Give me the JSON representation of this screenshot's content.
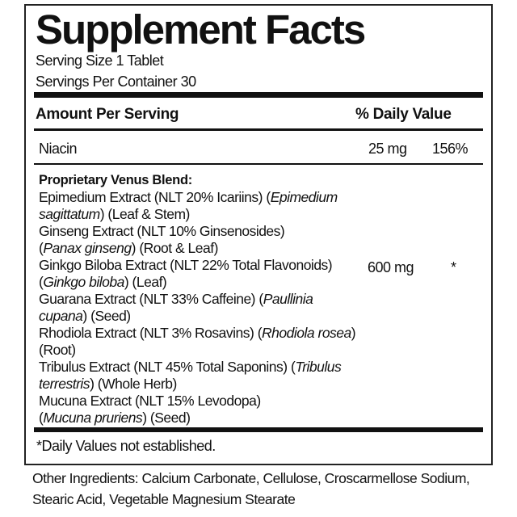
{
  "title": "Supplement Facts",
  "serving_size": "Serving Size 1 Tablet",
  "servings_per_container": "Servings Per Container 30",
  "header": {
    "amount": "Amount Per Serving",
    "daily_value": "% Daily Value"
  },
  "niacin": {
    "name": "Niacin",
    "amount": "25 mg",
    "dv": "156%"
  },
  "blend": {
    "name": "Proprietary Venus Blend:",
    "amount": "600 mg",
    "dv": "*",
    "lines": [
      [
        {
          "t": "Epimedium Extract (NLT 20% Icariins) ("
        },
        {
          "t": "Epimedium",
          "i": true
        }
      ],
      [
        {
          "t": "sagittatum",
          "i": true
        },
        {
          "t": ") (Leaf & Stem)"
        }
      ],
      [
        {
          "t": "Ginseng Extract (NLT 10% Ginsenosides)"
        }
      ],
      [
        {
          "t": " ("
        },
        {
          "t": "Panax ginseng",
          "i": true
        },
        {
          "t": ") (Root & Leaf)"
        }
      ],
      [
        {
          "t": "Ginkgo Biloba Extract (NLT 22% Total Flavonoids)"
        }
      ],
      [
        {
          "t": " ("
        },
        {
          "t": "Ginkgo biloba",
          "i": true
        },
        {
          "t": ") (Leaf)"
        }
      ],
      [
        {
          "t": "Guarana Extract (NLT 33% Caffeine) ("
        },
        {
          "t": "Paullinia",
          "i": true
        }
      ],
      [
        {
          "t": "cupana",
          "i": true
        },
        {
          "t": ") (Seed)"
        }
      ],
      [
        {
          "t": "Rhodiola Extract (NLT 3% Rosavins) ("
        },
        {
          "t": "Rhodiola rosea",
          "i": true
        },
        {
          "t": ")"
        }
      ],
      [
        {
          "t": " (Root)"
        }
      ],
      [
        {
          "t": "Tribulus Extract (NLT 45% Total Saponins) ("
        },
        {
          "t": "Tribulus",
          "i": true
        }
      ],
      [
        {
          "t": "terrestris",
          "i": true
        },
        {
          "t": ") (Whole Herb)"
        }
      ],
      [
        {
          "t": "Mucuna Extract (NLT 15% Levodopa)"
        }
      ],
      [
        {
          "t": "("
        },
        {
          "t": "Mucuna pruriens",
          "i": true
        },
        {
          "t": ") (Seed)"
        }
      ]
    ]
  },
  "footnote": "*Daily Values not established.",
  "other_ingredients": {
    "line1": "Other Ingredients: Calcium Carbonate, Cellulose, Croscarmellose Sodium,",
    "line2": "Stearic Acid, Vegetable Magnesium Stearate"
  }
}
